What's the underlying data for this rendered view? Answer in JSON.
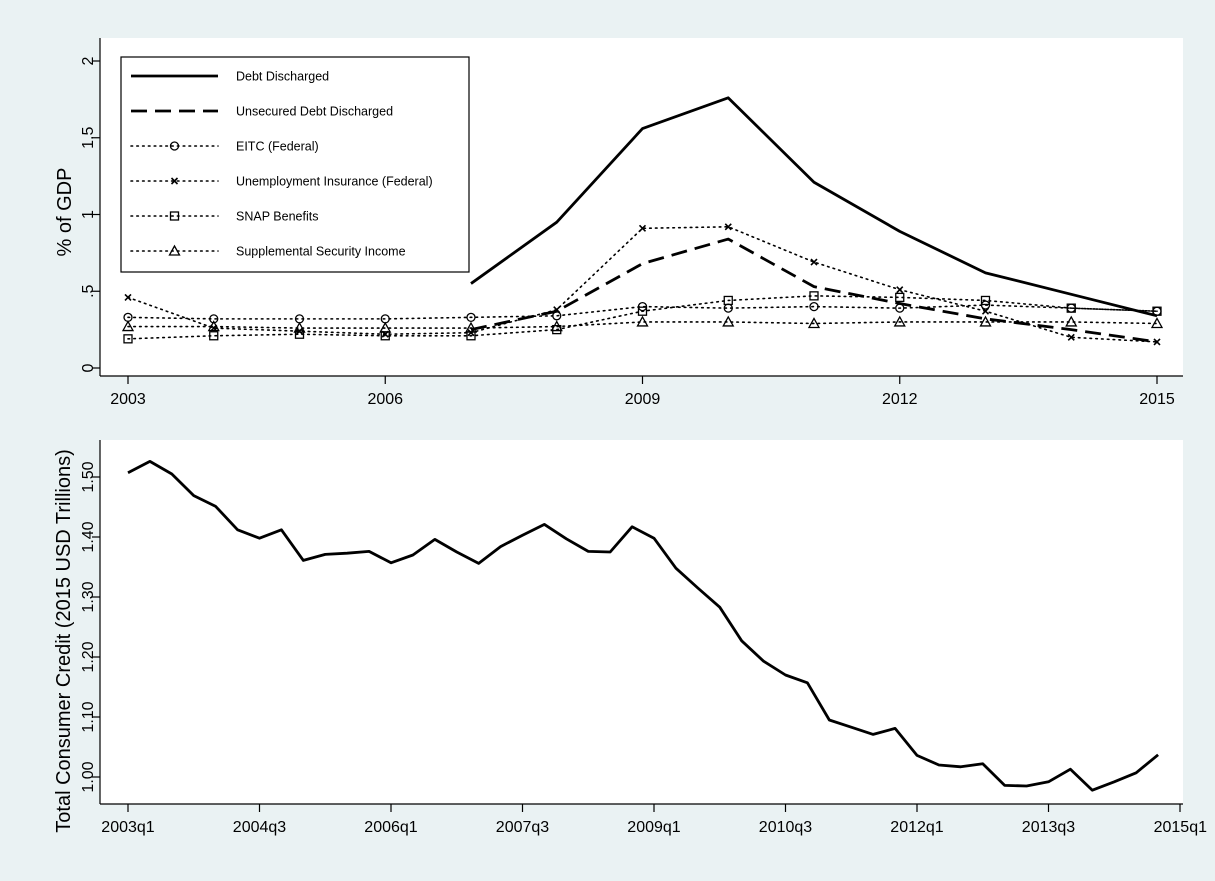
{
  "colors": {
    "page_background": "#eaf2f3",
    "plot_background": "#ffffff",
    "ink": "#000000"
  },
  "chart_data": [
    {
      "type": "line",
      "title": "",
      "xlabel": "",
      "ylabel": "% of GDP",
      "xlim": [
        2003,
        2015
      ],
      "ylim": [
        0,
        2
      ],
      "x_ticks": [
        2003,
        2006,
        2009,
        2012,
        2015
      ],
      "x_tick_labels": [
        "2003",
        "2006",
        "2009",
        "2012",
        "2015"
      ],
      "y_ticks": [
        0,
        0.5,
        1,
        1.5,
        2
      ],
      "y_tick_labels": [
        "0",
        ".5",
        "1",
        "1.5",
        "2"
      ],
      "grid": false,
      "legend_position": "top-left",
      "series": [
        {
          "name": "Debt Discharged",
          "line_style": "solid",
          "marker": "none",
          "x": [
            2007,
            2008,
            2009,
            2010,
            2011,
            2012,
            2013,
            2014,
            2015
          ],
          "y": [
            0.55,
            0.95,
            1.56,
            1.76,
            1.21,
            0.89,
            0.62,
            0.48,
            0.34
          ]
        },
        {
          "name": "Unsecured Debt Discharged",
          "line_style": "dashed",
          "marker": "none",
          "x": [
            2007,
            2008,
            2009,
            2010,
            2011,
            2012,
            2013,
            2014,
            2015
          ],
          "y": [
            0.25,
            0.37,
            0.68,
            0.84,
            0.53,
            0.42,
            0.32,
            0.25,
            0.17
          ]
        },
        {
          "name": "EITC (Federal)",
          "line_style": "dotted",
          "marker": "circle",
          "x": [
            2003,
            2004,
            2005,
            2006,
            2007,
            2008,
            2009,
            2010,
            2011,
            2012,
            2013,
            2014,
            2015
          ],
          "y": [
            0.33,
            0.32,
            0.32,
            0.32,
            0.33,
            0.34,
            0.4,
            0.39,
            0.4,
            0.39,
            0.41,
            0.39,
            0.37
          ]
        },
        {
          "name": "Unemployment Insurance (Federal)",
          "line_style": "dotted",
          "marker": "x",
          "x": [
            2003,
            2004,
            2005,
            2006,
            2007,
            2008,
            2009,
            2010,
            2011,
            2012,
            2013,
            2014,
            2015
          ],
          "y": [
            0.46,
            0.26,
            0.24,
            0.22,
            0.23,
            0.38,
            0.91,
            0.92,
            0.69,
            0.51,
            0.37,
            0.2,
            0.17
          ]
        },
        {
          "name": "SNAP Benefits",
          "line_style": "dotted",
          "marker": "square",
          "x": [
            2003,
            2004,
            2005,
            2006,
            2007,
            2008,
            2009,
            2010,
            2011,
            2012,
            2013,
            2014,
            2015
          ],
          "y": [
            0.19,
            0.21,
            0.22,
            0.21,
            0.21,
            0.25,
            0.37,
            0.44,
            0.47,
            0.46,
            0.44,
            0.39,
            0.37
          ]
        },
        {
          "name": "Supplemental Security Income",
          "line_style": "dotted",
          "marker": "triangle",
          "x": [
            2003,
            2004,
            2005,
            2006,
            2007,
            2008,
            2009,
            2010,
            2011,
            2012,
            2013,
            2014,
            2015
          ],
          "y": [
            0.27,
            0.27,
            0.26,
            0.26,
            0.26,
            0.27,
            0.3,
            0.3,
            0.29,
            0.3,
            0.3,
            0.3,
            0.29
          ]
        }
      ]
    },
    {
      "type": "line",
      "title": "",
      "xlabel": "",
      "ylabel": "Total Consumer Credit (2015 USD Trillions)",
      "x_unit": "quarter",
      "xlim": [
        "2003q1",
        "2015q1"
      ],
      "ylim": [
        0.97,
        1.53
      ],
      "x_ticks": [
        "2003q1",
        "2004q3",
        "2006q1",
        "2007q3",
        "2009q1",
        "2010q3",
        "2012q1",
        "2013q3",
        "2015q1"
      ],
      "y_ticks": [
        1.0,
        1.1,
        1.2,
        1.3,
        1.4,
        1.5
      ],
      "y_tick_labels": [
        "1.00",
        "1.10",
        "1.20",
        "1.30",
        "1.40",
        "1.50"
      ],
      "grid": false,
      "legend_position": "none",
      "series": [
        {
          "line_style": "solid",
          "marker": "none",
          "x": [
            "2003q1",
            "2003q2",
            "2003q3",
            "2003q4",
            "2004q1",
            "2004q2",
            "2004q3",
            "2004q4",
            "2005q1",
            "2005q2",
            "2005q3",
            "2005q4",
            "2006q1",
            "2006q2",
            "2006q3",
            "2006q4",
            "2007q1",
            "2007q2",
            "2007q3",
            "2007q4",
            "2008q1",
            "2008q2",
            "2008q3",
            "2008q4",
            "2009q1",
            "2009q2",
            "2009q3",
            "2009q4",
            "2010q1",
            "2010q2",
            "2010q3",
            "2010q4",
            "2011q1",
            "2011q2",
            "2011q3",
            "2011q4",
            "2012q1",
            "2012q2",
            "2012q3",
            "2012q4",
            "2013q1",
            "2013q2",
            "2013q3",
            "2013q4",
            "2014q1",
            "2014q2",
            "2014q3",
            "2014q4"
          ],
          "y": [
            1.507,
            1.526,
            1.505,
            1.469,
            1.451,
            1.412,
            1.398,
            1.412,
            1.361,
            1.371,
            1.373,
            1.376,
            1.357,
            1.37,
            1.396,
            1.375,
            1.356,
            1.384,
            1.403,
            1.421,
            1.397,
            1.376,
            1.375,
            1.417,
            1.398,
            1.348,
            1.315,
            1.283,
            1.227,
            1.193,
            1.17,
            1.157,
            1.095,
            1.083,
            1.071,
            1.081,
            1.036,
            1.02,
            1.017,
            1.022,
            0.986,
            0.985,
            0.992,
            1.013,
            0.978,
            0.992,
            1.007,
            1.037
          ]
        }
      ]
    }
  ]
}
